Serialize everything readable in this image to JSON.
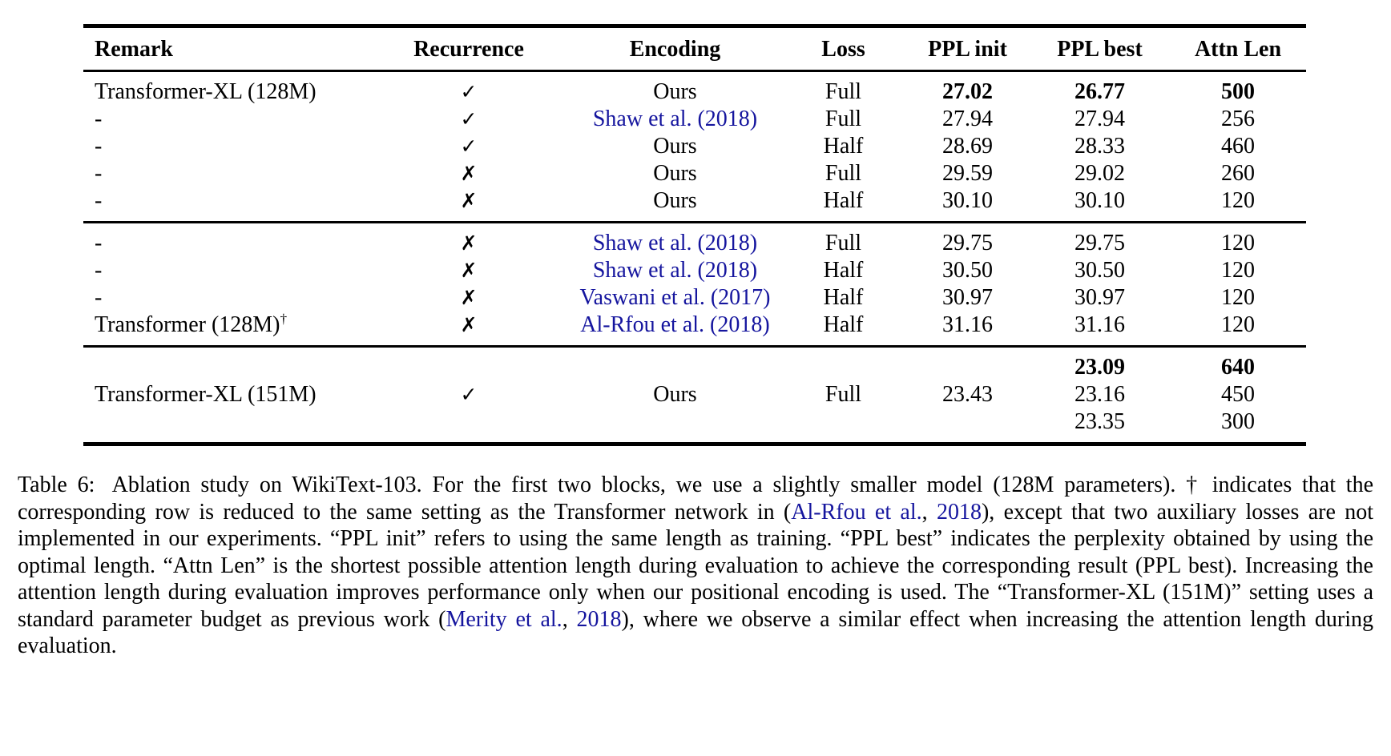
{
  "accent": {
    "link_color": "#15159E",
    "text_color": "#000000",
    "background": "#FFFFFF",
    "rule_color": "#000000"
  },
  "table": {
    "columns": [
      "Remark",
      "Recurrence",
      "Encoding",
      "Loss",
      "PPL init",
      "PPL best",
      "Attn Len"
    ],
    "check_glyph": "✓",
    "cross_glyph": "✗",
    "blocks": [
      [
        [
          {
            "t": "Transformer-XL (128M)"
          },
          {
            "t": "✓",
            "icon": "check"
          },
          {
            "t": "Ours"
          },
          {
            "t": "Full"
          },
          {
            "t": "27.02",
            "b": 1
          },
          {
            "t": "26.77",
            "b": 1
          },
          {
            "t": "500",
            "b": 1
          }
        ],
        [
          {
            "t": "-"
          },
          {
            "t": "✓",
            "icon": "check"
          },
          {
            "t": "Shaw et al. (2018)",
            "link": 1
          },
          {
            "t": "Full"
          },
          {
            "t": "27.94"
          },
          {
            "t": "27.94"
          },
          {
            "t": "256"
          }
        ],
        [
          {
            "t": "-"
          },
          {
            "t": "✓",
            "icon": "check"
          },
          {
            "t": "Ours"
          },
          {
            "t": "Half"
          },
          {
            "t": "28.69"
          },
          {
            "t": "28.33"
          },
          {
            "t": "460"
          }
        ],
        [
          {
            "t": "-"
          },
          {
            "t": "✗",
            "icon": "cross"
          },
          {
            "t": "Ours"
          },
          {
            "t": "Full"
          },
          {
            "t": "29.59"
          },
          {
            "t": "29.02"
          },
          {
            "t": "260"
          }
        ],
        [
          {
            "t": "-"
          },
          {
            "t": "✗",
            "icon": "cross"
          },
          {
            "t": "Ours"
          },
          {
            "t": "Half"
          },
          {
            "t": "30.10"
          },
          {
            "t": "30.10"
          },
          {
            "t": "120"
          }
        ]
      ],
      [
        [
          {
            "t": "-"
          },
          {
            "t": "✗",
            "icon": "cross"
          },
          {
            "t": "Shaw et al. (2018)",
            "link": 1
          },
          {
            "t": "Full"
          },
          {
            "t": "29.75"
          },
          {
            "t": "29.75"
          },
          {
            "t": "120"
          }
        ],
        [
          {
            "t": "-"
          },
          {
            "t": "✗",
            "icon": "cross"
          },
          {
            "t": "Shaw et al. (2018)",
            "link": 1
          },
          {
            "t": "Half"
          },
          {
            "t": "30.50"
          },
          {
            "t": "30.50"
          },
          {
            "t": "120"
          }
        ],
        [
          {
            "t": "-"
          },
          {
            "t": "✗",
            "icon": "cross"
          },
          {
            "t": "Vaswani et al. (2017)",
            "link": 1
          },
          {
            "t": "Half"
          },
          {
            "t": "30.97"
          },
          {
            "t": "30.97"
          },
          {
            "t": "120"
          }
        ],
        [
          {
            "t": "Transformer (128M)",
            "sup": "†"
          },
          {
            "t": "✗",
            "icon": "cross"
          },
          {
            "t": "Al-Rfou et al. (2018)",
            "link": 1
          },
          {
            "t": "Half"
          },
          {
            "t": "31.16"
          },
          {
            "t": "31.16"
          },
          {
            "t": "120"
          }
        ]
      ],
      [
        [
          {
            "t": ""
          },
          {
            "t": ""
          },
          {
            "t": ""
          },
          {
            "t": ""
          },
          {
            "t": ""
          },
          {
            "t": "23.09",
            "b": 1
          },
          {
            "t": "640",
            "b": 1
          }
        ],
        [
          {
            "t": "Transformer-XL (151M)"
          },
          {
            "t": "✓",
            "icon": "check"
          },
          {
            "t": "Ours"
          },
          {
            "t": "Full"
          },
          {
            "t": "23.43"
          },
          {
            "t": "23.16"
          },
          {
            "t": "450"
          }
        ],
        [
          {
            "t": ""
          },
          {
            "t": ""
          },
          {
            "t": ""
          },
          {
            "t": ""
          },
          {
            "t": ""
          },
          {
            "t": "23.35"
          },
          {
            "t": "300"
          }
        ]
      ]
    ]
  },
  "caption": {
    "segments": [
      {
        "t": "Table 6:",
        "label": 1
      },
      {
        "t": " Ablation study on WikiText-103. For the first two blocks, we use a slightly smaller model (128M parameters). † indicates that the corresponding row is reduced to the same setting as the Transformer network in ("
      },
      {
        "t": "Al-Rfou et al.",
        "link": 1
      },
      {
        "t": ", "
      },
      {
        "t": "2018",
        "link": 1
      },
      {
        "t": "), except that two auxiliary losses are not implemented in our experiments. “PPL init” refers to using the same length as training. “PPL best” indicates the perplexity obtained by using the optimal length. “Attn Len” is the shortest possible attention length during evaluation to achieve the corresponding result (PPL best). Increasing the attention length during evaluation improves performance only when our positional encoding is used. The “Transformer-XL (151M)” setting uses a standard parameter budget as previous work ("
      },
      {
        "t": "Merity et al.",
        "link": 1
      },
      {
        "t": ", "
      },
      {
        "t": "2018",
        "link": 1
      },
      {
        "t": "), where we observe a similar effect when increasing the attention length during evaluation."
      }
    ]
  }
}
